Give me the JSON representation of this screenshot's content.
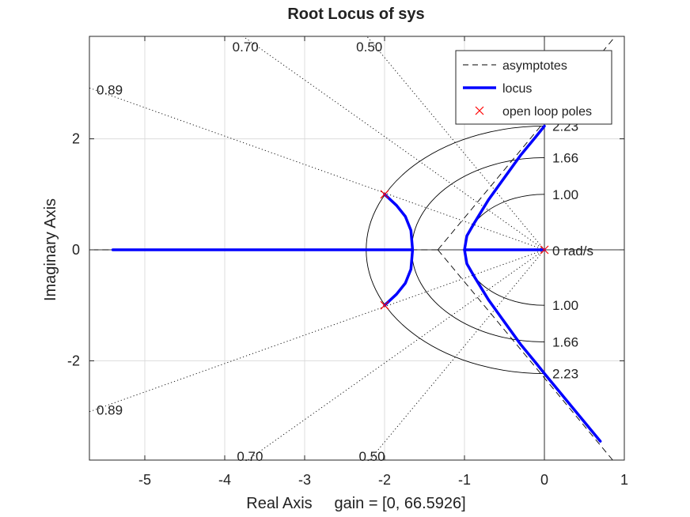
{
  "chart_data": {
    "type": "line",
    "title": "Root Locus of sys",
    "xlabel": "Real Axis     gain = [0, 66.5926]",
    "ylabel": "Imaginary Axis",
    "xlim": [
      -5.7,
      1.0
    ],
    "ylim": [
      -3.8,
      3.8
    ],
    "xticks": [
      -5,
      -4,
      -3,
      -2,
      -1,
      0,
      1
    ],
    "yticks": [
      -2,
      0,
      2
    ],
    "xtick_labels": [
      "-5",
      "-4",
      "-3",
      "-2",
      "-1",
      "0",
      "1"
    ],
    "ytick_labels": [
      "-2",
      "0",
      "2"
    ],
    "grid": true,
    "legend": {
      "position": "top-right",
      "entries": [
        {
          "label": "asymptotes",
          "style": "dashed",
          "color": "#000000"
        },
        {
          "label": "locus",
          "style": "solid",
          "color": "#0000ff"
        },
        {
          "label": "open loop poles",
          "style": "marker-x",
          "color": "#ff0000"
        }
      ]
    },
    "open_loop_poles": [
      {
        "re": 0,
        "im": 0
      },
      {
        "re": -2,
        "im": 1
      },
      {
        "re": -2,
        "im": -1
      }
    ],
    "asymptote_centroid": -1.3333,
    "asymptote_angles_deg": [
      60,
      180,
      -60
    ],
    "series": [
      {
        "name": "locus",
        "points": [
          [
            0,
            0
          ],
          [
            -0.5,
            0
          ],
          [
            -1.0,
            0
          ]
        ]
      },
      {
        "name": "locus",
        "points": [
          [
            -1.0,
            0
          ],
          [
            -0.97,
            0.25
          ],
          [
            -0.87,
            0.5
          ],
          [
            -0.7,
            0.9
          ],
          [
            -0.5,
            1.3
          ],
          [
            -0.3,
            1.7
          ],
          [
            -0.1,
            2.05
          ],
          [
            0,
            2.23
          ]
        ]
      },
      {
        "name": "locus",
        "points": [
          [
            -1.0,
            0
          ],
          [
            -0.97,
            -0.25
          ],
          [
            -0.87,
            -0.5
          ],
          [
            -0.7,
            -0.9
          ],
          [
            -0.5,
            -1.3
          ],
          [
            -0.3,
            -1.7
          ],
          [
            -0.1,
            -2.05
          ],
          [
            0,
            -2.23
          ],
          [
            0.7,
            -3.45
          ]
        ]
      },
      {
        "name": "locus",
        "points": [
          [
            -2.0,
            1.0
          ],
          [
            -1.85,
            0.8
          ],
          [
            -1.74,
            0.6
          ],
          [
            -1.67,
            0.35
          ],
          [
            -1.65,
            0
          ]
        ]
      },
      {
        "name": "locus",
        "points": [
          [
            -2.0,
            -1.0
          ],
          [
            -1.85,
            -0.8
          ],
          [
            -1.74,
            -0.6
          ],
          [
            -1.67,
            -0.35
          ],
          [
            -1.65,
            0
          ]
        ]
      },
      {
        "name": "locus",
        "points": [
          [
            -1.65,
            0
          ],
          [
            -3.0,
            0
          ],
          [
            -4.5,
            0
          ],
          [
            -5.4,
            0
          ]
        ]
      }
    ],
    "damping_lines": [
      {
        "zeta": 0.89,
        "label": "0.89"
      },
      {
        "zeta": 0.7,
        "label": "0.70"
      },
      {
        "zeta": 0.5,
        "label": "0.50"
      }
    ],
    "natural_frequency_circles": [
      {
        "wn": 1.0,
        "label": "1.00"
      },
      {
        "wn": 1.66,
        "label": "1.66"
      },
      {
        "wn": 2.23,
        "label": "2.23"
      }
    ],
    "zero_frequency_label": "0 rad/s"
  }
}
